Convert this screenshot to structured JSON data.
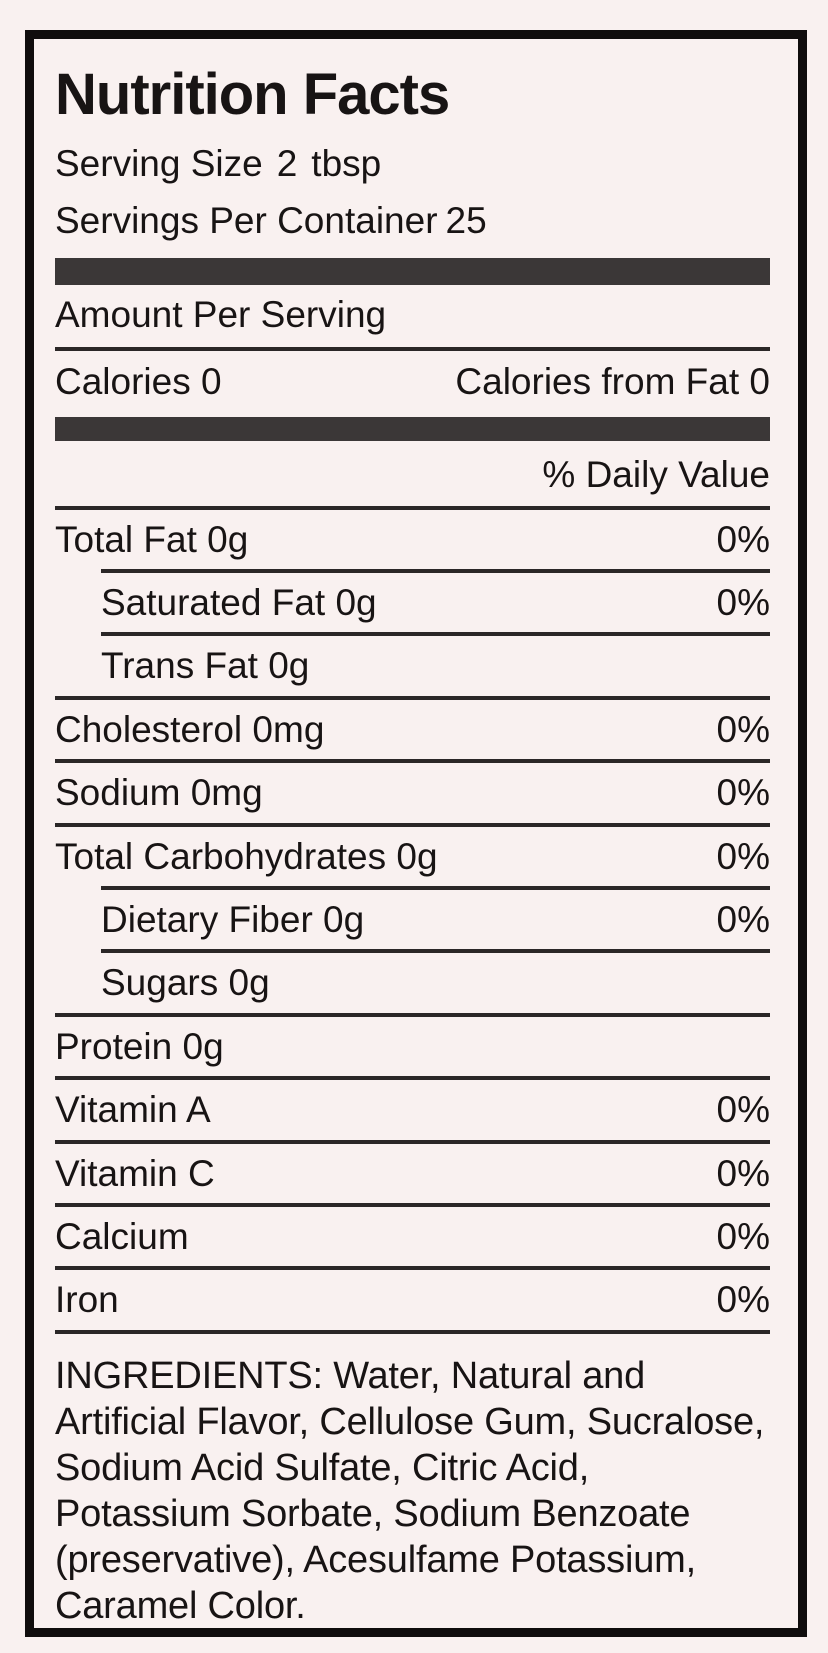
{
  "colors": {
    "page_background": "#f9f1f0",
    "border": "#100d0d",
    "text": "#181414",
    "thick_bar": "#3b3737",
    "divider": "#2b2727"
  },
  "label": {
    "title": "Nutrition Facts",
    "serving_size_label": "Serving Size",
    "serving_size_amount": "2",
    "serving_size_unit": "tbsp",
    "servings_per_container_label": "Servings Per Container",
    "servings_per_container_value": "25",
    "amount_per_serving": "Amount Per Serving",
    "calories_label": "Calories",
    "calories_value": "0",
    "calories_from_fat_label": "Calories from Fat",
    "calories_from_fat_value": "0",
    "daily_value_header": "% Daily Value",
    "rows": [
      {
        "label": "Total Fat 0g",
        "percent": "0%"
      },
      {
        "label": "Saturated Fat 0g",
        "percent": "0%"
      },
      {
        "label": "Trans Fat 0g",
        "percent": ""
      },
      {
        "label": "Cholesterol 0mg",
        "percent": "0%"
      },
      {
        "label": "Sodium 0mg",
        "percent": "0%"
      },
      {
        "label": "Total Carbohydrates 0g",
        "percent": "0%"
      },
      {
        "label": "Dietary Fiber 0g",
        "percent": "0%"
      },
      {
        "label": "Sugars 0g",
        "percent": ""
      },
      {
        "label": "Protein 0g",
        "percent": ""
      },
      {
        "label": "Vitamin A",
        "percent": "0%"
      },
      {
        "label": "Vitamin C",
        "percent": "0%"
      },
      {
        "label": "Calcium",
        "percent": "0%"
      },
      {
        "label": "Iron",
        "percent": "0%"
      }
    ],
    "ingredients": "INGREDIENTS: Water, Natural and Artificial Flavor, Cellulose Gum, Sucralose, Sodium Acid Sulfate, Citric Acid, Potassium Sorbate, Sodium Benzoate (preservative), Acesulfame Potassium, Caramel Color."
  }
}
